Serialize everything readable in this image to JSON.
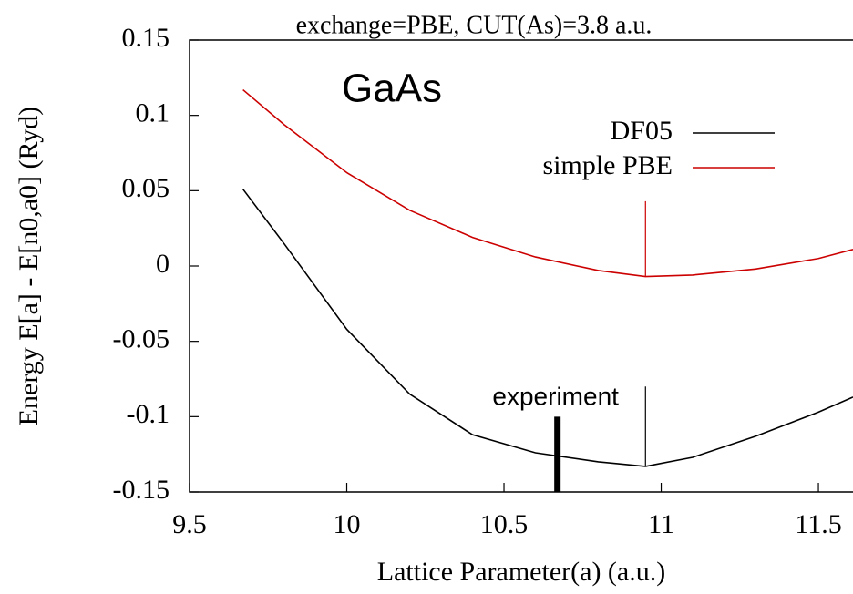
{
  "chart_data": {
    "type": "line",
    "title": "exchange=PBE, CUT(As)=3.8 a.u.",
    "subtitle": "GaAs",
    "x_label": "Lattice Parameter(a) (a.u.)",
    "y_label": "Energy E[a] - E[n0,a0] (Ryd)",
    "xlim": [
      9.5,
      11.61
    ],
    "ylim": [
      -0.15,
      0.15
    ],
    "xticks": [
      9.5,
      10,
      10.5,
      11,
      11.5
    ],
    "yticks": [
      0.15,
      0.1,
      0.05,
      0,
      -0.05,
      -0.1,
      -0.15
    ],
    "legend": "upper right",
    "series": [
      {
        "name": "DF05",
        "color": "#000000",
        "x": [
          9.67,
          9.8,
          10.0,
          10.2,
          10.4,
          10.6,
          10.8,
          10.95,
          11.1,
          11.3,
          11.5,
          11.61
        ],
        "values": [
          0.051,
          0.015,
          -0.042,
          -0.085,
          -0.112,
          -0.124,
          -0.13,
          -0.133,
          -0.127,
          -0.113,
          -0.097,
          -0.087
        ]
      },
      {
        "name": "simple PBE",
        "color": "#cc0000",
        "x": [
          9.67,
          9.8,
          10.0,
          10.2,
          10.4,
          10.6,
          10.8,
          10.95,
          11.1,
          11.3,
          11.5,
          11.61
        ],
        "values": [
          0.117,
          0.094,
          0.062,
          0.037,
          0.019,
          0.006,
          -0.003,
          -0.007,
          -0.006,
          -0.002,
          0.005,
          0.011
        ]
      }
    ],
    "annotations": [
      {
        "text": "experiment",
        "x": 10.67,
        "y": [
          -0.15,
          -0.1
        ]
      }
    ],
    "minimum_markers": [
      {
        "x": 10.95,
        "y": [
          -0.007,
          0.043
        ]
      },
      {
        "x": 10.95,
        "y": [
          -0.133,
          -0.08
        ]
      }
    ]
  }
}
